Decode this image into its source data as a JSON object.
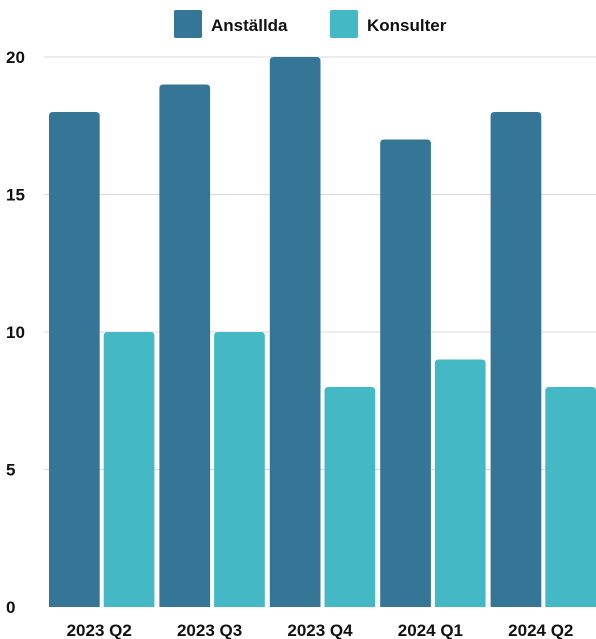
{
  "chart_data": {
    "type": "bar",
    "categories": [
      "2023 Q2",
      "2023 Q3",
      "2023 Q4",
      "2024 Q1",
      "2024 Q2"
    ],
    "series": [
      {
        "name": "Anställda",
        "values": [
          18,
          19,
          20,
          17,
          18
        ],
        "color": "#357596"
      },
      {
        "name": "Konsulter",
        "values": [
          10,
          10,
          8,
          9,
          8
        ],
        "color": "#45b8c6"
      }
    ],
    "y_ticks": [
      "0",
      "5",
      "10",
      "15",
      "20"
    ],
    "ylim": [
      0,
      20
    ],
    "grid": true,
    "legend_position": "top-center",
    "title": "",
    "xlabel": "",
    "ylabel": ""
  }
}
